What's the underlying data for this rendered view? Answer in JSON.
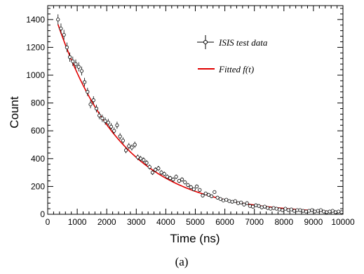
{
  "chart_data": {
    "type": "scatter",
    "xlabel": "Time (ns)",
    "ylabel": "Count",
    "caption": "(a)",
    "xlim": [
      0,
      10000
    ],
    "ylim": [
      0,
      1500
    ],
    "x_ticks": [
      0,
      1000,
      2000,
      3000,
      4000,
      5000,
      6000,
      7000,
      8000,
      9000,
      10000
    ],
    "y_ticks": [
      0,
      200,
      400,
      600,
      800,
      1000,
      1200,
      1400
    ],
    "legend": {
      "placement": "top-right",
      "entries": [
        "ISIS test data",
        "Fitted f(t)"
      ]
    },
    "colors": {
      "data": "#000000",
      "fit": "#e00000"
    },
    "fit": {
      "name": "Fitted f(t)",
      "amplitude": 1600,
      "tau_ns": 2200,
      "offset": 0
    },
    "series": [
      {
        "name": "ISIS test data",
        "x": [
          350,
          450,
          550,
          650,
          750,
          850,
          950,
          1050,
          1150,
          1250,
          1350,
          1450,
          1550,
          1650,
          1750,
          1850,
          1950,
          2050,
          2150,
          2250,
          2350,
          2450,
          2550,
          2650,
          2750,
          2850,
          2950,
          3050,
          3150,
          3250,
          3350,
          3450,
          3550,
          3650,
          3750,
          3850,
          3950,
          4050,
          4150,
          4250,
          4350,
          4450,
          4550,
          4650,
          4750,
          4850,
          4950,
          5050,
          5150,
          5250,
          5350,
          5450,
          5550,
          5650,
          5750,
          5850,
          5950,
          6050,
          6150,
          6250,
          6350,
          6450,
          6550,
          6650,
          6750,
          6850,
          6950,
          7050,
          7150,
          7250,
          7350,
          7450,
          7550,
          7650,
          7750,
          7850,
          7950,
          8050,
          8150,
          8250,
          8350,
          8450,
          8550,
          8650,
          8750,
          8850,
          8950,
          9050,
          9150,
          9250,
          9350,
          9450,
          9550,
          9650,
          9750,
          9850,
          9950
        ],
        "y": [
          1400,
          1335,
          1290,
          1200,
          1130,
          1100,
          1080,
          1060,
          1030,
          950,
          880,
          790,
          820,
          760,
          710,
          690,
          670,
          660,
          630,
          600,
          640,
          560,
          530,
          460,
          490,
          480,
          500,
          410,
          400,
          390,
          370,
          340,
          300,
          320,
          330,
          300,
          290,
          270,
          260,
          250,
          270,
          240,
          250,
          230,
          210,
          195,
          180,
          200,
          175,
          135,
          150,
          140,
          130,
          160,
          120,
          110,
          100,
          105,
          95,
          90,
          95,
          80,
          85,
          70,
          80,
          60,
          55,
          65,
          60,
          50,
          55,
          45,
          40,
          45,
          40,
          35,
          30,
          40,
          30,
          35,
          25,
          30,
          30,
          25,
          20,
          25,
          30,
          20,
          25,
          30,
          20,
          15,
          20,
          25,
          15,
          20,
          15
        ]
      }
    ]
  }
}
